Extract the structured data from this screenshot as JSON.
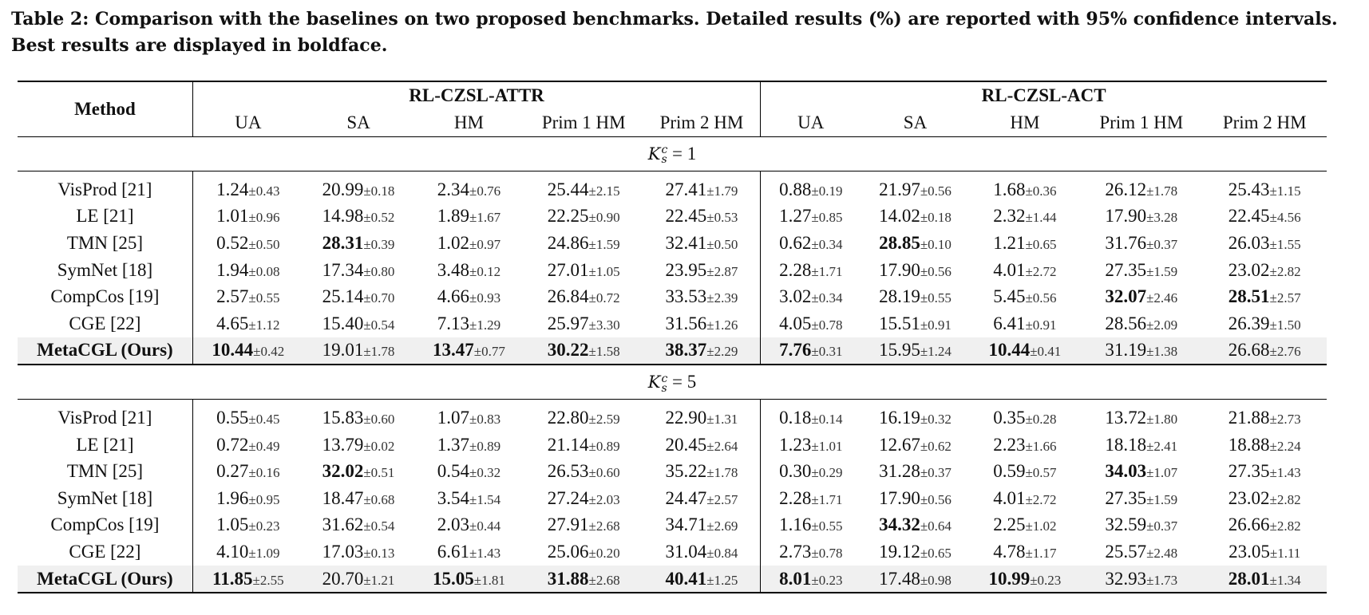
{
  "caption": "Table 2: Comparison with the baselines on two proposed benchmarks. Detailed results (%) are reported with 95% confidence intervals. Best results are displayed in boldface.",
  "header": {
    "method": "Method",
    "group1": "RL-CZSL-ATTR",
    "group2": "RL-CZSL-ACT",
    "columns": [
      "UA",
      "SA",
      "HM",
      "Prim 1 HM",
      "Prim 2 HM",
      "UA",
      "SA",
      "HM",
      "Prim 1 HM",
      "Prim 2 HM"
    ]
  },
  "sections": [
    {
      "label_var": "K",
      "label_sup": "c",
      "label_sub": "s",
      "label_value": " = 1",
      "rows": [
        {
          "method": "VisProd [21]",
          "bold_method": false,
          "cells": [
            {
              "v": "1.24",
              "e": "±0.43",
              "b": false
            },
            {
              "v": "20.99",
              "e": "±0.18",
              "b": false
            },
            {
              "v": "2.34",
              "e": "±0.76",
              "b": false
            },
            {
              "v": "25.44",
              "e": "±2.15",
              "b": false
            },
            {
              "v": "27.41",
              "e": "±1.79",
              "b": false
            },
            {
              "v": "0.88",
              "e": "±0.19",
              "b": false
            },
            {
              "v": "21.97",
              "e": "±0.56",
              "b": false
            },
            {
              "v": "1.68",
              "e": "±0.36",
              "b": false
            },
            {
              "v": "26.12",
              "e": "±1.78",
              "b": false
            },
            {
              "v": "25.43",
              "e": "±1.15",
              "b": false
            }
          ]
        },
        {
          "method": "LE [21]",
          "bold_method": false,
          "cells": [
            {
              "v": "1.01",
              "e": "±0.96",
              "b": false
            },
            {
              "v": "14.98",
              "e": "±0.52",
              "b": false
            },
            {
              "v": "1.89",
              "e": "±1.67",
              "b": false
            },
            {
              "v": "22.25",
              "e": "±0.90",
              "b": false
            },
            {
              "v": "22.45",
              "e": "±0.53",
              "b": false
            },
            {
              "v": "1.27",
              "e": "±0.85",
              "b": false
            },
            {
              "v": "14.02",
              "e": "±0.18",
              "b": false
            },
            {
              "v": "2.32",
              "e": "±1.44",
              "b": false
            },
            {
              "v": "17.90",
              "e": "±3.28",
              "b": false
            },
            {
              "v": "22.45",
              "e": "±4.56",
              "b": false
            }
          ]
        },
        {
          "method": "TMN [25]",
          "bold_method": false,
          "cells": [
            {
              "v": "0.52",
              "e": "±0.50",
              "b": false
            },
            {
              "v": "28.31",
              "e": "±0.39",
              "b": true
            },
            {
              "v": "1.02",
              "e": "±0.97",
              "b": false
            },
            {
              "v": "24.86",
              "e": "±1.59",
              "b": false
            },
            {
              "v": "32.41",
              "e": "±0.50",
              "b": false
            },
            {
              "v": "0.62",
              "e": "±0.34",
              "b": false
            },
            {
              "v": "28.85",
              "e": "±0.10",
              "b": true
            },
            {
              "v": "1.21",
              "e": "±0.65",
              "b": false
            },
            {
              "v": "31.76",
              "e": "±0.37",
              "b": false
            },
            {
              "v": "26.03",
              "e": "±1.55",
              "b": false
            }
          ]
        },
        {
          "method": "SymNet [18]",
          "bold_method": false,
          "cells": [
            {
              "v": "1.94",
              "e": "±0.08",
              "b": false
            },
            {
              "v": "17.34",
              "e": "±0.80",
              "b": false
            },
            {
              "v": "3.48",
              "e": "±0.12",
              "b": false
            },
            {
              "v": "27.01",
              "e": "±1.05",
              "b": false
            },
            {
              "v": "23.95",
              "e": "±2.87",
              "b": false
            },
            {
              "v": "2.28",
              "e": "±1.71",
              "b": false
            },
            {
              "v": "17.90",
              "e": "±0.56",
              "b": false
            },
            {
              "v": "4.01",
              "e": "±2.72",
              "b": false
            },
            {
              "v": "27.35",
              "e": "±1.59",
              "b": false
            },
            {
              "v": "23.02",
              "e": "±2.82",
              "b": false
            }
          ]
        },
        {
          "method": "CompCos [19]",
          "bold_method": false,
          "cells": [
            {
              "v": "2.57",
              "e": "±0.55",
              "b": false
            },
            {
              "v": "25.14",
              "e": "±0.70",
              "b": false
            },
            {
              "v": "4.66",
              "e": "±0.93",
              "b": false
            },
            {
              "v": "26.84",
              "e": "±0.72",
              "b": false
            },
            {
              "v": "33.53",
              "e": "±2.39",
              "b": false
            },
            {
              "v": "3.02",
              "e": "±0.34",
              "b": false
            },
            {
              "v": "28.19",
              "e": "±0.55",
              "b": false
            },
            {
              "v": "5.45",
              "e": "±0.56",
              "b": false
            },
            {
              "v": "32.07",
              "e": "±2.46",
              "b": true
            },
            {
              "v": "28.51",
              "e": "±2.57",
              "b": true
            }
          ]
        },
        {
          "method": "CGE [22]",
          "bold_method": false,
          "cells": [
            {
              "v": "4.65",
              "e": "±1.12",
              "b": false
            },
            {
              "v": "15.40",
              "e": "±0.54",
              "b": false
            },
            {
              "v": "7.13",
              "e": "±1.29",
              "b": false
            },
            {
              "v": "25.97",
              "e": "±3.30",
              "b": false
            },
            {
              "v": "31.56",
              "e": "±1.26",
              "b": false
            },
            {
              "v": "4.05",
              "e": "±0.78",
              "b": false
            },
            {
              "v": "15.51",
              "e": "±0.91",
              "b": false
            },
            {
              "v": "6.41",
              "e": "±0.91",
              "b": false
            },
            {
              "v": "28.56",
              "e": "±2.09",
              "b": false
            },
            {
              "v": "26.39",
              "e": "±1.50",
              "b": false
            }
          ]
        },
        {
          "method": "MetaCGL (Ours)",
          "bold_method": true,
          "cells": [
            {
              "v": "10.44",
              "e": "±0.42",
              "b": true
            },
            {
              "v": "19.01",
              "e": "±1.78",
              "b": false
            },
            {
              "v": "13.47",
              "e": "±0.77",
              "b": true
            },
            {
              "v": "30.22",
              "e": "±1.58",
              "b": true
            },
            {
              "v": "38.37",
              "e": "±2.29",
              "b": true
            },
            {
              "v": "7.76",
              "e": "±0.31",
              "b": true
            },
            {
              "v": "15.95",
              "e": "±1.24",
              "b": false
            },
            {
              "v": "10.44",
              "e": "±0.41",
              "b": true
            },
            {
              "v": "31.19",
              "e": "±1.38",
              "b": false
            },
            {
              "v": "26.68",
              "e": "±2.76",
              "b": false
            }
          ]
        }
      ]
    },
    {
      "label_var": "K",
      "label_sup": "c",
      "label_sub": "s",
      "label_value": " = 5",
      "rows": [
        {
          "method": "VisProd [21]",
          "bold_method": false,
          "cells": [
            {
              "v": "0.55",
              "e": "±0.45",
              "b": false
            },
            {
              "v": "15.83",
              "e": "±0.60",
              "b": false
            },
            {
              "v": "1.07",
              "e": "±0.83",
              "b": false
            },
            {
              "v": "22.80",
              "e": "±2.59",
              "b": false
            },
            {
              "v": "22.90",
              "e": "±1.31",
              "b": false
            },
            {
              "v": "0.18",
              "e": "±0.14",
              "b": false
            },
            {
              "v": "16.19",
              "e": "±0.32",
              "b": false
            },
            {
              "v": "0.35",
              "e": "±0.28",
              "b": false
            },
            {
              "v": "13.72",
              "e": "±1.80",
              "b": false
            },
            {
              "v": "21.88",
              "e": "±2.73",
              "b": false
            }
          ]
        },
        {
          "method": "LE [21]",
          "bold_method": false,
          "cells": [
            {
              "v": "0.72",
              "e": "±0.49",
              "b": false
            },
            {
              "v": "13.79",
              "e": "±0.02",
              "b": false
            },
            {
              "v": "1.37",
              "e": "±0.89",
              "b": false
            },
            {
              "v": "21.14",
              "e": "±0.89",
              "b": false
            },
            {
              "v": "20.45",
              "e": "±2.64",
              "b": false
            },
            {
              "v": "1.23",
              "e": "±1.01",
              "b": false
            },
            {
              "v": "12.67",
              "e": "±0.62",
              "b": false
            },
            {
              "v": "2.23",
              "e": "±1.66",
              "b": false
            },
            {
              "v": "18.18",
              "e": "±2.41",
              "b": false
            },
            {
              "v": "18.88",
              "e": "±2.24",
              "b": false
            }
          ]
        },
        {
          "method": "TMN [25]",
          "bold_method": false,
          "cells": [
            {
              "v": "0.27",
              "e": "±0.16",
              "b": false
            },
            {
              "v": "32.02",
              "e": "±0.51",
              "b": true
            },
            {
              "v": "0.54",
              "e": "±0.32",
              "b": false
            },
            {
              "v": "26.53",
              "e": "±0.60",
              "b": false
            },
            {
              "v": "35.22",
              "e": "±1.78",
              "b": false
            },
            {
              "v": "0.30",
              "e": "±0.29",
              "b": false
            },
            {
              "v": "31.28",
              "e": "±0.37",
              "b": false
            },
            {
              "v": "0.59",
              "e": "±0.57",
              "b": false
            },
            {
              "v": "34.03",
              "e": "±1.07",
              "b": true
            },
            {
              "v": "27.35",
              "e": "±1.43",
              "b": false
            }
          ]
        },
        {
          "method": "SymNet [18]",
          "bold_method": false,
          "cells": [
            {
              "v": "1.96",
              "e": "±0.95",
              "b": false
            },
            {
              "v": "18.47",
              "e": "±0.68",
              "b": false
            },
            {
              "v": "3.54",
              "e": "±1.54",
              "b": false
            },
            {
              "v": "27.24",
              "e": "±2.03",
              "b": false
            },
            {
              "v": "24.47",
              "e": "±2.57",
              "b": false
            },
            {
              "v": "2.28",
              "e": "±1.71",
              "b": false
            },
            {
              "v": "17.90",
              "e": "±0.56",
              "b": false
            },
            {
              "v": "4.01",
              "e": "±2.72",
              "b": false
            },
            {
              "v": "27.35",
              "e": "±1.59",
              "b": false
            },
            {
              "v": "23.02",
              "e": "±2.82",
              "b": false
            }
          ]
        },
        {
          "method": "CompCos [19]",
          "bold_method": false,
          "cells": [
            {
              "v": "1.05",
              "e": "±0.23",
              "b": false
            },
            {
              "v": "31.62",
              "e": "±0.54",
              "b": false
            },
            {
              "v": "2.03",
              "e": "±0.44",
              "b": false
            },
            {
              "v": "27.91",
              "e": "±2.68",
              "b": false
            },
            {
              "v": "34.71",
              "e": "±2.69",
              "b": false
            },
            {
              "v": "1.16",
              "e": "±0.55",
              "b": false
            },
            {
              "v": "34.32",
              "e": "±0.64",
              "b": true
            },
            {
              "v": "2.25",
              "e": "±1.02",
              "b": false
            },
            {
              "v": "32.59",
              "e": "±0.37",
              "b": false
            },
            {
              "v": "26.66",
              "e": "±2.82",
              "b": false
            }
          ]
        },
        {
          "method": "CGE [22]",
          "bold_method": false,
          "cells": [
            {
              "v": "4.10",
              "e": "±1.09",
              "b": false
            },
            {
              "v": "17.03",
              "e": "±0.13",
              "b": false
            },
            {
              "v": "6.61",
              "e": "±1.43",
              "b": false
            },
            {
              "v": "25.06",
              "e": "±0.20",
              "b": false
            },
            {
              "v": "31.04",
              "e": "±0.84",
              "b": false
            },
            {
              "v": "2.73",
              "e": "±0.78",
              "b": false
            },
            {
              "v": "19.12",
              "e": "±0.65",
              "b": false
            },
            {
              "v": "4.78",
              "e": "±1.17",
              "b": false
            },
            {
              "v": "25.57",
              "e": "±2.48",
              "b": false
            },
            {
              "v": "23.05",
              "e": "±1.11",
              "b": false
            }
          ]
        },
        {
          "method": "MetaCGL (Ours)",
          "bold_method": true,
          "cells": [
            {
              "v": "11.85",
              "e": "±2.55",
              "b": true
            },
            {
              "v": "20.70",
              "e": "±1.21",
              "b": false
            },
            {
              "v": "15.05",
              "e": "±1.81",
              "b": true
            },
            {
              "v": "31.88",
              "e": "±2.68",
              "b": true
            },
            {
              "v": "40.41",
              "e": "±1.25",
              "b": true
            },
            {
              "v": "8.01",
              "e": "±0.23",
              "b": true
            },
            {
              "v": "17.48",
              "e": "±0.98",
              "b": false
            },
            {
              "v": "10.99",
              "e": "±0.23",
              "b": true
            },
            {
              "v": "32.93",
              "e": "±1.73",
              "b": false
            },
            {
              "v": "28.01",
              "e": "±1.34",
              "b": true
            }
          ]
        }
      ]
    }
  ]
}
